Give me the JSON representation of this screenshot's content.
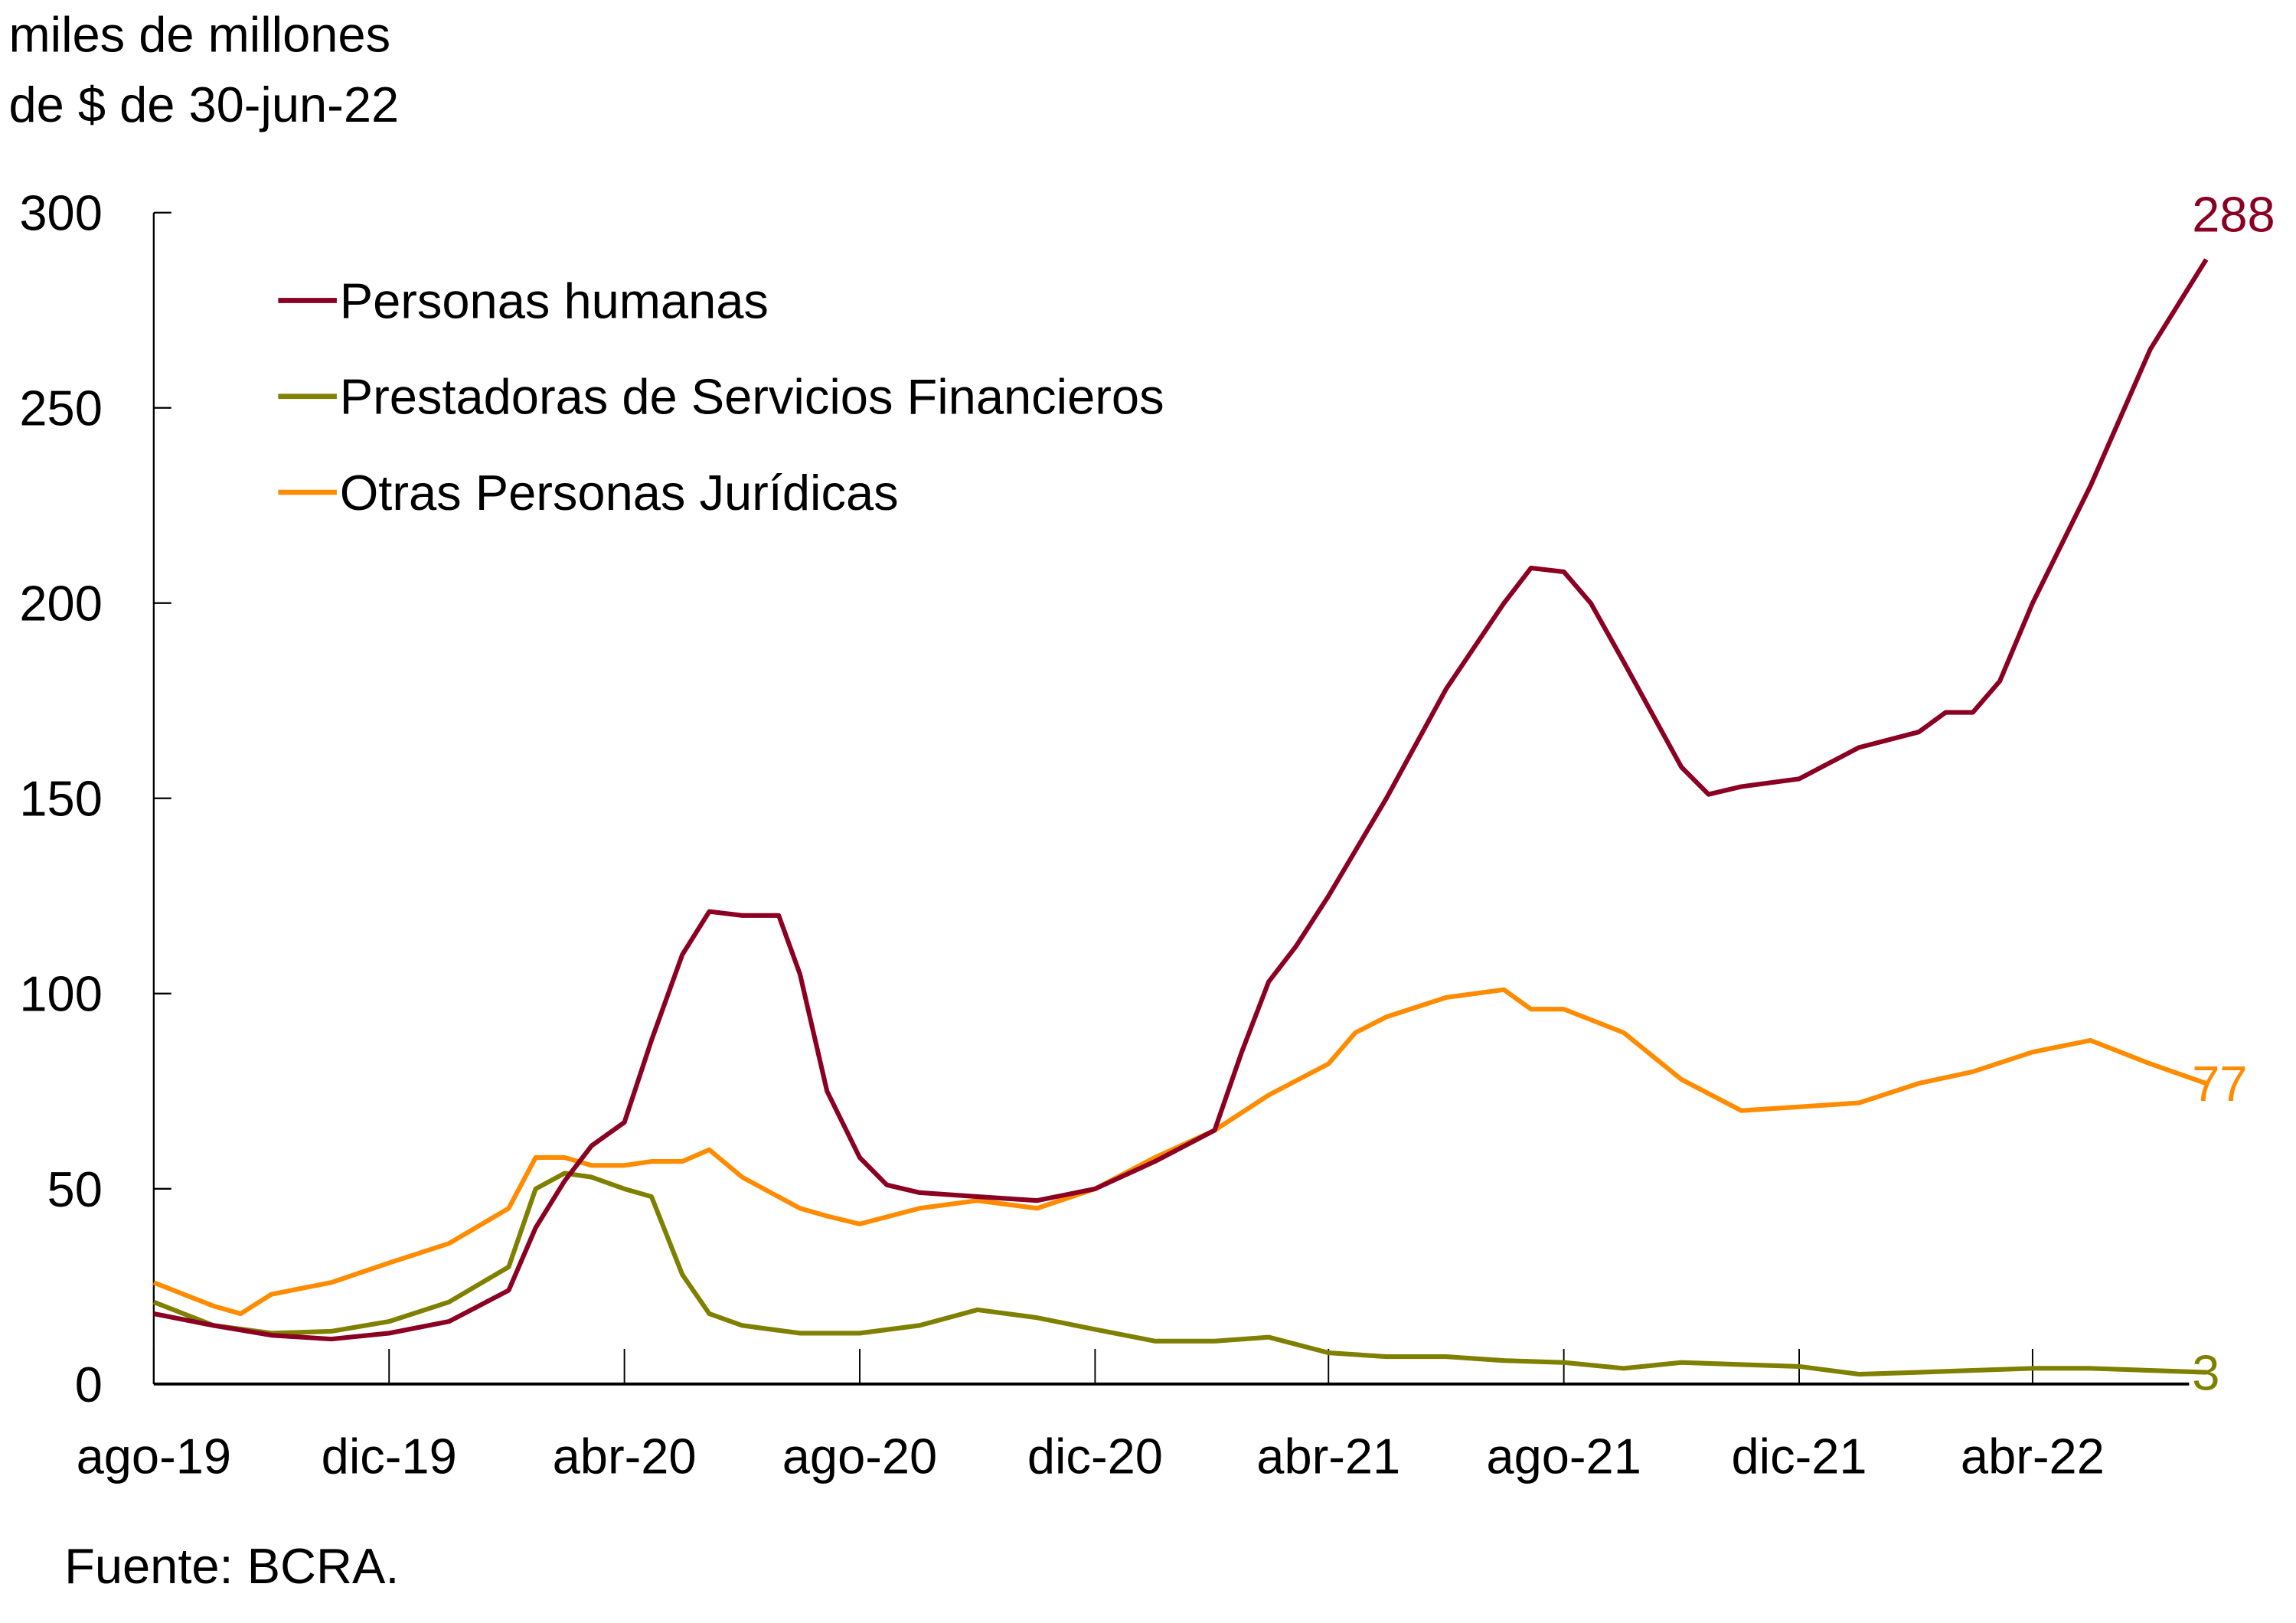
{
  "chart_data": {
    "type": "line",
    "ylabel_lines": [
      "miles de millones",
      "de $ de 30-jun-22"
    ],
    "source": "Fuente: BCRA.",
    "ylim": [
      0,
      300
    ],
    "yticks": [
      "0",
      "50",
      "100",
      "150",
      "200",
      "250",
      "300"
    ],
    "xticks": [
      {
        "label": "ago-19",
        "date": "2019-08-01"
      },
      {
        "label": "dic-19",
        "date": "2019-12-01"
      },
      {
        "label": "abr-20",
        "date": "2020-04-01"
      },
      {
        "label": "ago-20",
        "date": "2020-08-01"
      },
      {
        "label": "dic-20",
        "date": "2020-12-01"
      },
      {
        "label": "abr-21",
        "date": "2021-04-01"
      },
      {
        "label": "ago-21",
        "date": "2021-08-01"
      },
      {
        "label": "dic-21",
        "date": "2021-12-01"
      },
      {
        "label": "abr-22",
        "date": "2022-04-01"
      }
    ],
    "legend_position": "top-left",
    "grid": false,
    "series": [
      {
        "name": "Personas humanas",
        "color": "#8B0022",
        "end_label": "288",
        "points": [
          [
            "2019-08-01",
            18
          ],
          [
            "2019-09-01",
            15
          ],
          [
            "2019-10-01",
            12.5
          ],
          [
            "2019-11-01",
            11.5
          ],
          [
            "2019-12-01",
            13
          ],
          [
            "2020-01-01",
            16
          ],
          [
            "2020-02-01",
            24
          ],
          [
            "2020-02-15",
            40
          ],
          [
            "2020-03-01",
            52
          ],
          [
            "2020-03-15",
            61
          ],
          [
            "2020-04-01",
            67
          ],
          [
            "2020-04-15",
            88
          ],
          [
            "2020-05-01",
            110
          ],
          [
            "2020-05-15",
            121
          ],
          [
            "2020-06-01",
            120
          ],
          [
            "2020-06-20",
            120
          ],
          [
            "2020-07-01",
            105
          ],
          [
            "2020-07-15",
            75
          ],
          [
            "2020-08-01",
            58
          ],
          [
            "2020-08-15",
            51
          ],
          [
            "2020-09-01",
            49
          ],
          [
            "2020-10-01",
            48
          ],
          [
            "2020-11-01",
            47
          ],
          [
            "2020-12-01",
            50
          ],
          [
            "2021-01-01",
            57
          ],
          [
            "2021-02-01",
            65
          ],
          [
            "2021-02-15",
            85
          ],
          [
            "2021-03-01",
            103
          ],
          [
            "2021-03-15",
            112
          ],
          [
            "2021-04-01",
            125
          ],
          [
            "2021-05-01",
            150
          ],
          [
            "2021-06-01",
            178
          ],
          [
            "2021-07-01",
            200
          ],
          [
            "2021-07-15",
            209
          ],
          [
            "2021-08-01",
            208
          ],
          [
            "2021-08-15",
            200
          ],
          [
            "2021-09-01",
            185
          ],
          [
            "2021-10-01",
            158
          ],
          [
            "2021-10-15",
            151
          ],
          [
            "2021-11-01",
            153
          ],
          [
            "2021-12-01",
            155
          ],
          [
            "2022-01-01",
            163
          ],
          [
            "2022-02-01",
            167
          ],
          [
            "2022-02-15",
            172
          ],
          [
            "2022-03-01",
            172
          ],
          [
            "2022-03-15",
            180
          ],
          [
            "2022-04-01",
            200
          ],
          [
            "2022-05-01",
            230
          ],
          [
            "2022-06-01",
            265
          ],
          [
            "2022-06-30",
            288
          ]
        ]
      },
      {
        "name": "Prestadoras de Servicios Financieros",
        "color": "#7F7F00",
        "end_label": "3",
        "points": [
          [
            "2019-08-01",
            21
          ],
          [
            "2019-09-01",
            15
          ],
          [
            "2019-10-01",
            13
          ],
          [
            "2019-11-01",
            13.5
          ],
          [
            "2019-12-01",
            16
          ],
          [
            "2020-01-01",
            21
          ],
          [
            "2020-02-01",
            30
          ],
          [
            "2020-02-15",
            50
          ],
          [
            "2020-03-01",
            54
          ],
          [
            "2020-03-15",
            53
          ],
          [
            "2020-04-01",
            50
          ],
          [
            "2020-04-15",
            48
          ],
          [
            "2020-05-01",
            28
          ],
          [
            "2020-05-15",
            18
          ],
          [
            "2020-06-01",
            15
          ],
          [
            "2020-07-01",
            13
          ],
          [
            "2020-08-01",
            13
          ],
          [
            "2020-09-01",
            15
          ],
          [
            "2020-10-01",
            19
          ],
          [
            "2020-11-01",
            17
          ],
          [
            "2020-12-01",
            14
          ],
          [
            "2021-01-01",
            11
          ],
          [
            "2021-02-01",
            11
          ],
          [
            "2021-03-01",
            12
          ],
          [
            "2021-04-01",
            8
          ],
          [
            "2021-05-01",
            7
          ],
          [
            "2021-06-01",
            7
          ],
          [
            "2021-07-01",
            6
          ],
          [
            "2021-08-01",
            5.5
          ],
          [
            "2021-09-01",
            4
          ],
          [
            "2021-10-01",
            5.5
          ],
          [
            "2021-11-01",
            5
          ],
          [
            "2021-12-01",
            4.5
          ],
          [
            "2022-01-01",
            2.5
          ],
          [
            "2022-02-01",
            3
          ],
          [
            "2022-03-01",
            3.5
          ],
          [
            "2022-04-01",
            4
          ],
          [
            "2022-05-01",
            4
          ],
          [
            "2022-06-30",
            3
          ]
        ]
      },
      {
        "name": "Otras Personas Jurídicas",
        "color": "#FF8C00",
        "end_label": "77",
        "points": [
          [
            "2019-08-01",
            26
          ],
          [
            "2019-09-01",
            20
          ],
          [
            "2019-09-15",
            18
          ],
          [
            "2019-10-01",
            23
          ],
          [
            "2019-11-01",
            26
          ],
          [
            "2019-12-01",
            31
          ],
          [
            "2020-01-01",
            36
          ],
          [
            "2020-02-01",
            45
          ],
          [
            "2020-02-15",
            58
          ],
          [
            "2020-03-01",
            58
          ],
          [
            "2020-03-15",
            56
          ],
          [
            "2020-04-01",
            56
          ],
          [
            "2020-04-15",
            57
          ],
          [
            "2020-05-01",
            57
          ],
          [
            "2020-05-15",
            60
          ],
          [
            "2020-06-01",
            53
          ],
          [
            "2020-07-01",
            45
          ],
          [
            "2020-07-15",
            43
          ],
          [
            "2020-08-01",
            41
          ],
          [
            "2020-09-01",
            45
          ],
          [
            "2020-10-01",
            47
          ],
          [
            "2020-11-01",
            45
          ],
          [
            "2020-12-01",
            50
          ],
          [
            "2021-01-01",
            58
          ],
          [
            "2021-02-01",
            65
          ],
          [
            "2021-03-01",
            74
          ],
          [
            "2021-04-01",
            82
          ],
          [
            "2021-04-15",
            90
          ],
          [
            "2021-05-01",
            94
          ],
          [
            "2021-06-01",
            99
          ],
          [
            "2021-07-01",
            101
          ],
          [
            "2021-07-15",
            96
          ],
          [
            "2021-08-01",
            96
          ],
          [
            "2021-09-01",
            90
          ],
          [
            "2021-10-01",
            78
          ],
          [
            "2021-11-01",
            70
          ],
          [
            "2021-12-01",
            71
          ],
          [
            "2022-01-01",
            72
          ],
          [
            "2022-02-01",
            77
          ],
          [
            "2022-03-01",
            80
          ],
          [
            "2022-04-01",
            85
          ],
          [
            "2022-05-01",
            88
          ],
          [
            "2022-06-01",
            82
          ],
          [
            "2022-06-30",
            77
          ]
        ]
      }
    ]
  }
}
